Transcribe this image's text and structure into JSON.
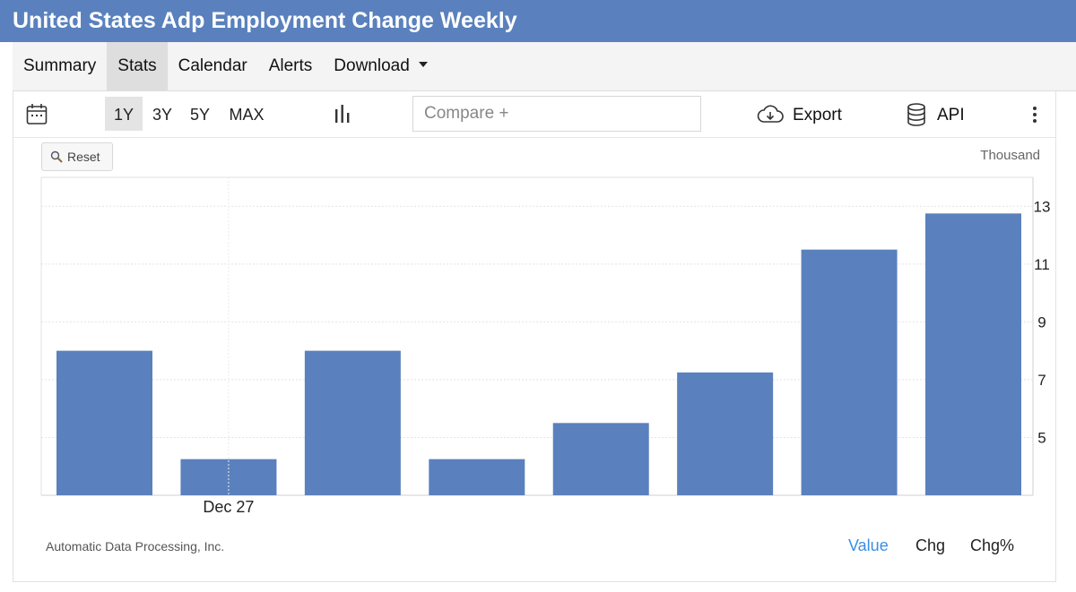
{
  "title": "United States Adp Employment Change Weekly",
  "nav": {
    "tabs": [
      {
        "label": "Summary"
      },
      {
        "label": "Stats",
        "active": true
      },
      {
        "label": "Calendar"
      },
      {
        "label": "Alerts"
      },
      {
        "label": "Download",
        "dropdown": true
      }
    ]
  },
  "toolbar": {
    "calendar_icon": "calendar-icon",
    "ranges": [
      "1Y",
      "3Y",
      "5Y",
      "MAX"
    ],
    "active_range": "1Y",
    "chart_type_icon": "bar-chart-icon",
    "compare_placeholder": "Compare +",
    "export_label": "Export",
    "export_icon": "cloud-download-icon",
    "api_label": "API",
    "api_icon": "database-icon",
    "more_icon": "vertical-ellipsis-icon"
  },
  "chart_controls": {
    "reset_label": "Reset",
    "reset_icon": "magnifier-icon",
    "unit_label": "Thousand"
  },
  "footer": {
    "source": "Automatic Data Processing, Inc.",
    "modes": [
      "Value",
      "Chg",
      "Chg%"
    ],
    "active_mode": "Value"
  },
  "colors": {
    "accent": "#5a81bd",
    "bar": "#5a81bd",
    "active_mode": "#3a8ee6"
  },
  "chart_data": {
    "type": "bar",
    "categories": [
      "",
      "Dec 27",
      "",
      "",
      "",
      "",
      "",
      ""
    ],
    "values": [
      8.0,
      4.25,
      8.0,
      4.25,
      5.5,
      7.25,
      11.5,
      12.75
    ],
    "yticks": [
      5,
      7,
      9,
      11,
      13
    ],
    "ylim": [
      3.0,
      14.0
    ],
    "ylabel": "Thousand",
    "y_axis_position": "right",
    "grid": true
  }
}
